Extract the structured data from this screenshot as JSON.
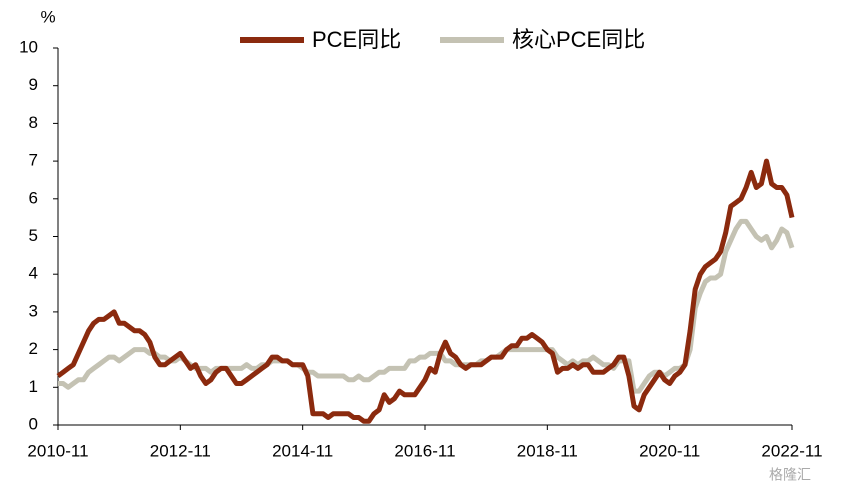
{
  "chart_data": {
    "type": "line",
    "y_label": "%",
    "watermark": "格隆汇",
    "categories": [
      "2010-11",
      null,
      null,
      null,
      null,
      null,
      null,
      null,
      null,
      null,
      null,
      null,
      null,
      null,
      null,
      null,
      null,
      null,
      null,
      null,
      null,
      null,
      null,
      null,
      "2012-11",
      null,
      null,
      null,
      null,
      null,
      null,
      null,
      null,
      null,
      null,
      null,
      null,
      null,
      null,
      null,
      null,
      null,
      null,
      null,
      null,
      null,
      null,
      null,
      "2014-11",
      null,
      null,
      null,
      null,
      null,
      null,
      null,
      null,
      null,
      null,
      null,
      null,
      null,
      null,
      null,
      null,
      null,
      null,
      null,
      null,
      null,
      null,
      null,
      "2016-11",
      null,
      null,
      null,
      null,
      null,
      null,
      null,
      null,
      null,
      null,
      null,
      null,
      null,
      null,
      null,
      null,
      null,
      null,
      null,
      null,
      null,
      null,
      null,
      "2018-11",
      null,
      null,
      null,
      null,
      null,
      null,
      null,
      null,
      null,
      null,
      null,
      null,
      null,
      null,
      null,
      null,
      null,
      null,
      null,
      null,
      null,
      null,
      null,
      "2020-11",
      null,
      null,
      null,
      null,
      null,
      null,
      null,
      null,
      null,
      null,
      null,
      null,
      null,
      null,
      null,
      null,
      null,
      null,
      null,
      null,
      null,
      null,
      null,
      "2022-11"
    ],
    "series": [
      {
        "name": "PCE同比",
        "color": "#8b2a0e",
        "values": [
          1.3,
          1.4,
          1.5,
          1.6,
          1.9,
          2.2,
          2.5,
          2.7,
          2.8,
          2.8,
          2.9,
          3.0,
          2.7,
          2.7,
          2.6,
          2.5,
          2.5,
          2.4,
          2.2,
          1.8,
          1.6,
          1.6,
          1.7,
          1.8,
          1.9,
          1.7,
          1.5,
          1.6,
          1.3,
          1.1,
          1.2,
          1.4,
          1.5,
          1.5,
          1.3,
          1.1,
          1.1,
          1.2,
          1.3,
          1.4,
          1.5,
          1.6,
          1.8,
          1.8,
          1.7,
          1.7,
          1.6,
          1.6,
          1.6,
          1.3,
          0.3,
          0.3,
          0.3,
          0.2,
          0.3,
          0.3,
          0.3,
          0.3,
          0.2,
          0.2,
          0.1,
          0.1,
          0.3,
          0.4,
          0.8,
          0.6,
          0.7,
          0.9,
          0.8,
          0.8,
          0.8,
          1.0,
          1.2,
          1.5,
          1.4,
          1.9,
          2.2,
          1.9,
          1.8,
          1.6,
          1.5,
          1.6,
          1.6,
          1.6,
          1.7,
          1.8,
          1.8,
          1.8,
          2.0,
          2.1,
          2.1,
          2.3,
          2.3,
          2.4,
          2.3,
          2.2,
          2.0,
          1.9,
          1.4,
          1.5,
          1.5,
          1.6,
          1.5,
          1.6,
          1.6,
          1.4,
          1.4,
          1.4,
          1.5,
          1.6,
          1.8,
          1.8,
          1.3,
          0.5,
          0.4,
          0.8,
          1.0,
          1.2,
          1.4,
          1.2,
          1.1,
          1.3,
          1.4,
          1.6,
          2.5,
          3.6,
          4.0,
          4.2,
          4.3,
          4.4,
          4.6,
          5.1,
          5.8,
          5.9,
          6.0,
          6.3,
          6.7,
          6.3,
          6.4,
          7.0,
          6.4,
          6.3,
          6.3,
          6.1,
          5.5
        ]
      },
      {
        "name": "核心PCE同比",
        "color": "#c4c2b3",
        "values": [
          1.1,
          1.1,
          1.0,
          1.1,
          1.2,
          1.2,
          1.4,
          1.5,
          1.6,
          1.7,
          1.8,
          1.8,
          1.7,
          1.8,
          1.9,
          2.0,
          2.0,
          2.0,
          1.9,
          1.9,
          1.8,
          1.8,
          1.7,
          1.7,
          1.8,
          1.7,
          1.6,
          1.5,
          1.5,
          1.5,
          1.4,
          1.5,
          1.5,
          1.5,
          1.5,
          1.5,
          1.5,
          1.6,
          1.5,
          1.5,
          1.6,
          1.6,
          1.7,
          1.7,
          1.7,
          1.7,
          1.6,
          1.6,
          1.5,
          1.4,
          1.4,
          1.3,
          1.3,
          1.3,
          1.3,
          1.3,
          1.3,
          1.2,
          1.2,
          1.3,
          1.2,
          1.2,
          1.3,
          1.4,
          1.4,
          1.5,
          1.5,
          1.5,
          1.5,
          1.7,
          1.7,
          1.8,
          1.8,
          1.9,
          1.9,
          1.9,
          1.7,
          1.7,
          1.6,
          1.6,
          1.6,
          1.6,
          1.6,
          1.7,
          1.7,
          1.8,
          1.8,
          1.9,
          2.0,
          2.0,
          2.0,
          2.0,
          2.0,
          2.0,
          2.0,
          2.0,
          2.0,
          2.0,
          1.8,
          1.7,
          1.6,
          1.7,
          1.6,
          1.7,
          1.7,
          1.8,
          1.7,
          1.6,
          1.6,
          1.5,
          1.7,
          1.7,
          1.7,
          0.9,
          0.9,
          1.1,
          1.3,
          1.4,
          1.4,
          1.3,
          1.4,
          1.5,
          1.5,
          1.6,
          2.0,
          3.1,
          3.5,
          3.8,
          3.9,
          3.9,
          4.0,
          4.6,
          4.9,
          5.2,
          5.4,
          5.4,
          5.2,
          5.0,
          4.9,
          5.0,
          4.7,
          4.9,
          5.2,
          5.1,
          4.7
        ]
      }
    ],
    "ylim": [
      0,
      10
    ],
    "yticks": [
      0,
      1,
      2,
      3,
      4,
      5,
      6,
      7,
      8,
      9,
      10
    ],
    "legend": "top"
  }
}
